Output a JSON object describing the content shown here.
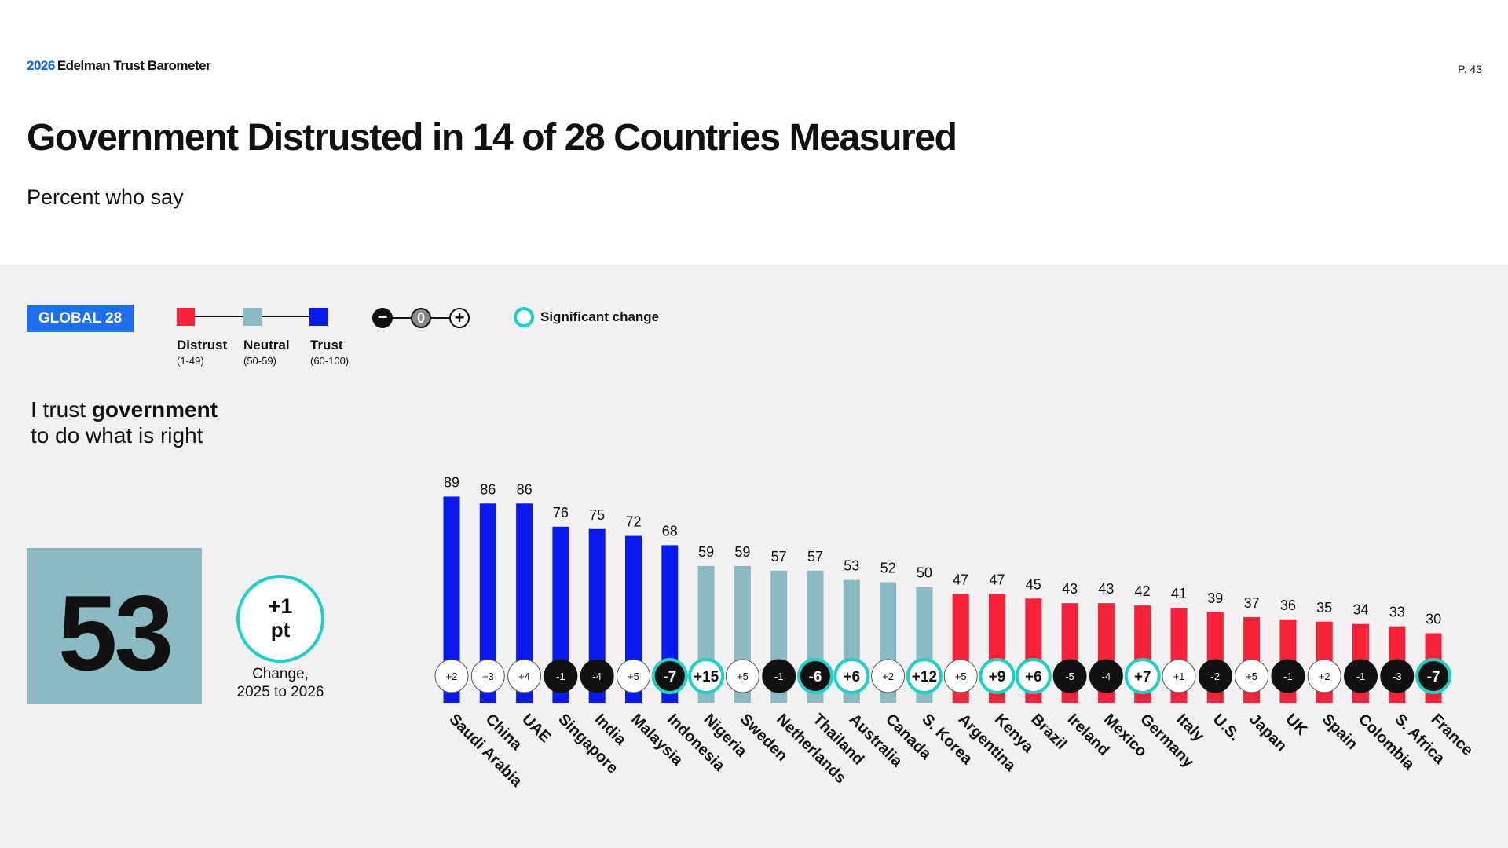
{
  "header": {
    "brand_year": "2026",
    "brand_name": "Edelman Trust Barometer",
    "page": "P. 43",
    "title": "Government Distrusted in 14 of 28 Countries Measured",
    "subtitle": "Percent who say"
  },
  "legend": {
    "badge": "GLOBAL 28",
    "items": [
      {
        "label": "Distrust",
        "range": "(1-49)",
        "color": "#f5223a"
      },
      {
        "label": "Neutral",
        "range": "(50-59)",
        "color": "#8cbac3"
      },
      {
        "label": "Trust",
        "range": "(60-100)",
        "color": "#0a1aee"
      }
    ],
    "change_icons": {
      "minus": "−",
      "zero": "0",
      "plus": "+"
    },
    "significant_label": "Significant change",
    "significant_color": "#1fd0c4"
  },
  "statement": {
    "line1_pre": "I trust ",
    "line1_bold": "government",
    "line2": "to do what is right"
  },
  "global": {
    "value": "53",
    "change": "+1",
    "change_unit": "pt",
    "change_label_1": "Change,",
    "change_label_2": "2025 to 2026"
  },
  "chart_data": {
    "type": "bar",
    "categories": [
      "Saudi Arabia",
      "China",
      "UAE",
      "Singapore",
      "India",
      "Malaysia",
      "Indonesia",
      "Nigeria",
      "Sweden",
      "Netherlands",
      "Thailand",
      "Australia",
      "Canada",
      "S. Korea",
      "Argentina",
      "Kenya",
      "Brazil",
      "Ireland",
      "Mexico",
      "Germany",
      "Italy",
      "U.S.",
      "Japan",
      "UK",
      "Spain",
      "Colombia",
      "S. Africa",
      "France"
    ],
    "values": [
      89,
      86,
      86,
      76,
      75,
      72,
      68,
      59,
      59,
      57,
      57,
      53,
      52,
      50,
      47,
      47,
      45,
      43,
      43,
      42,
      41,
      39,
      37,
      36,
      35,
      34,
      33,
      30
    ],
    "changes": [
      "+2",
      "+3",
      "+4",
      "-1",
      "-4",
      "+5",
      "-7",
      "+15",
      "+5",
      "-1",
      "-6",
      "+6",
      "+2",
      "+12",
      "+5",
      "+9",
      "+6",
      "-5",
      "-4",
      "+7",
      "+1",
      "-2",
      "+5",
      "-1",
      "+2",
      "-1",
      "-3",
      "-7"
    ],
    "significant": [
      false,
      false,
      false,
      false,
      false,
      false,
      true,
      true,
      false,
      false,
      true,
      true,
      false,
      true,
      false,
      true,
      true,
      false,
      false,
      true,
      false,
      false,
      false,
      false,
      false,
      false,
      false,
      true
    ],
    "ylim": [
      0,
      100
    ],
    "colors": {
      "trust": "#0a1aee",
      "neutral": "#8cbac3",
      "distrust": "#f5223a",
      "decline_fill": "#111111",
      "ring": "#1fd0c4"
    }
  }
}
